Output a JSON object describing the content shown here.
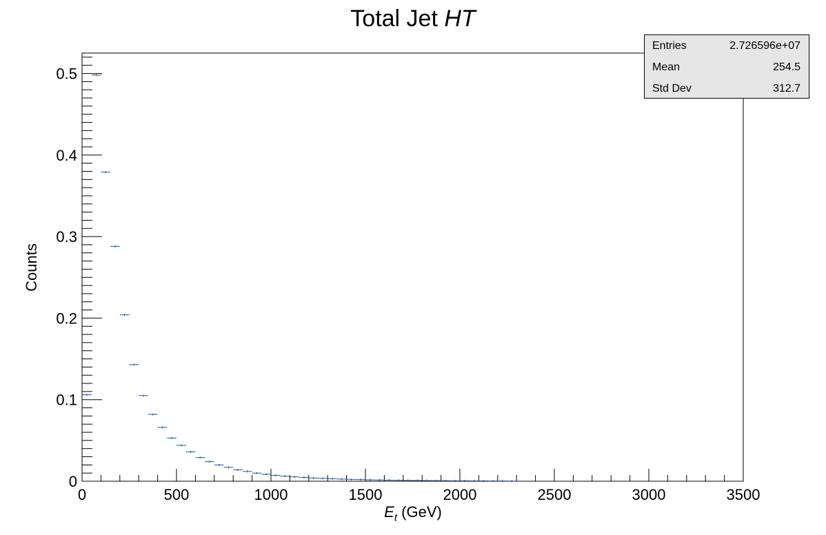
{
  "title_main": "Total Jet",
  "title_var": "HT",
  "stats": {
    "rows": [
      {
        "label": "Entries",
        "value": "2.726596e+07"
      },
      {
        "label": "Mean",
        "value": "254.5"
      },
      {
        "label": "Std Dev",
        "value": "312.7"
      }
    ]
  },
  "xlabel_sym": "E",
  "xlabel_sub": "t",
  "xlabel_unit": "(GeV)",
  "ylabel": "Counts",
  "colors": {
    "marker": "#1f4e99",
    "frame": "#000000",
    "stats_bg": "#e6e6e6"
  },
  "chart_data": {
    "type": "scatter",
    "title": "Total Jet HT",
    "xlabel": "Et (GeV)",
    "ylabel": "Counts",
    "xlim": [
      0,
      3500
    ],
    "ylim": [
      0,
      0.525
    ],
    "x_ticks": [
      0,
      500,
      1000,
      1500,
      2000,
      2500,
      3000,
      3500
    ],
    "y_ticks": [
      0,
      0.1,
      0.2,
      0.3,
      0.4,
      0.5
    ],
    "y_tick_labels": [
      "0",
      "0.1",
      "0.2",
      "0.3",
      "0.4",
      "0.5"
    ],
    "bin_width": 50,
    "x": [
      25,
      75,
      125,
      175,
      225,
      275,
      325,
      375,
      425,
      475,
      525,
      575,
      625,
      675,
      725,
      775,
      825,
      875,
      925,
      975,
      1025,
      1075,
      1125,
      1175,
      1225,
      1275,
      1325,
      1375,
      1425,
      1475,
      1525,
      1575,
      1625,
      1675,
      1725,
      1775,
      1825,
      1875,
      1925,
      1975,
      2025,
      2075,
      2125,
      2175,
      2225,
      2275
    ],
    "y": [
      0.106,
      0.498,
      0.379,
      0.288,
      0.204,
      0.143,
      0.105,
      0.082,
      0.066,
      0.053,
      0.044,
      0.036,
      0.029,
      0.024,
      0.02,
      0.017,
      0.014,
      0.012,
      0.01,
      0.0085,
      0.0072,
      0.0062,
      0.0053,
      0.0046,
      0.004,
      0.0035,
      0.003,
      0.0026,
      0.0023,
      0.002,
      0.0017,
      0.0015,
      0.0013,
      0.0011,
      0.001,
      0.0009,
      0.0008,
      0.0007,
      0.0006,
      0.0005,
      0.0005,
      0.0004,
      0.0004,
      0.0003,
      0.0003,
      0.0002
    ],
    "grid": false
  }
}
